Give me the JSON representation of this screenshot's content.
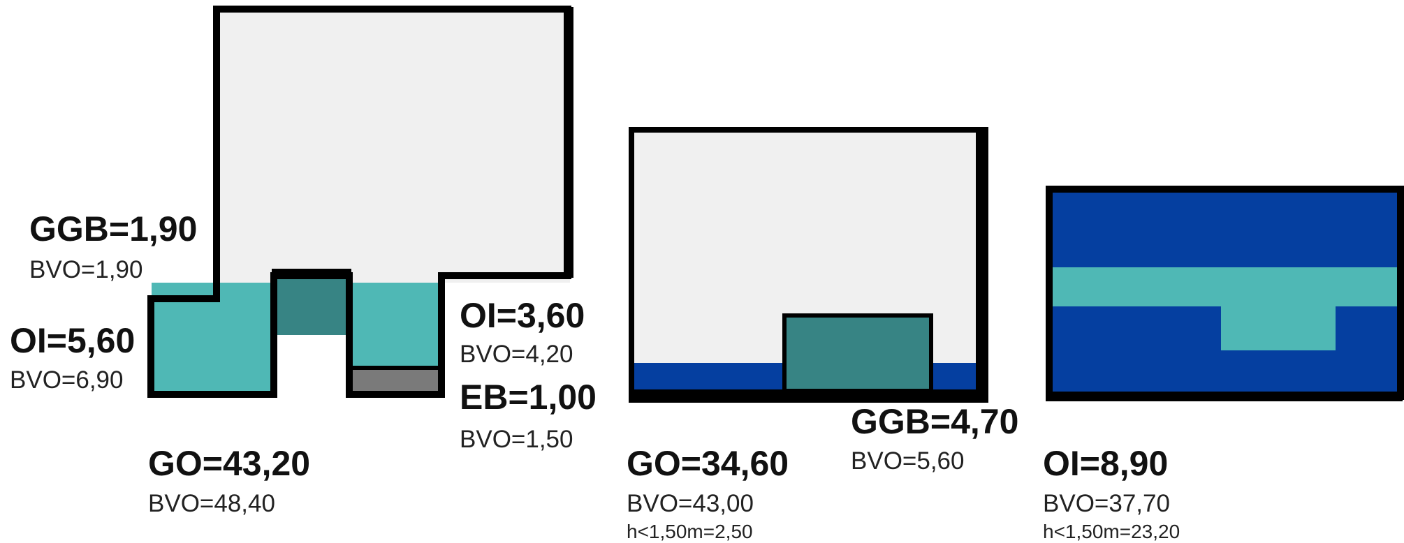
{
  "colors": {
    "outline": "#000000",
    "room_fill": "#f0f0f0",
    "turquoise": "#4fb8b5",
    "dark_teal": "#378484",
    "gray": "#7a7a7a",
    "blue": "#053fa0"
  },
  "diagram_1": {
    "ggb": {
      "title": "GGB=1,90",
      "sub": "BVO=1,90"
    },
    "oi_left": {
      "title": "OI=5,60",
      "sub": "BVO=6,90"
    },
    "oi_right": {
      "title": "OI=3,60",
      "sub": "BVO=4,20"
    },
    "eb": {
      "title": "EB=1,00",
      "sub": "BVO=1,50"
    },
    "go": {
      "title": "GO=43,20",
      "sub": "BVO=48,40"
    }
  },
  "diagram_2": {
    "ggb": {
      "title": "GGB=4,70",
      "sub": "BVO=5,60"
    },
    "go": {
      "title": "GO=34,60",
      "sub": "BVO=43,00",
      "note": "h<1,50m=2,50"
    }
  },
  "diagram_3": {
    "oi": {
      "title": "OI=8,90",
      "sub": "BVO=37,70",
      "note": "h<1,50m=23,20"
    }
  }
}
